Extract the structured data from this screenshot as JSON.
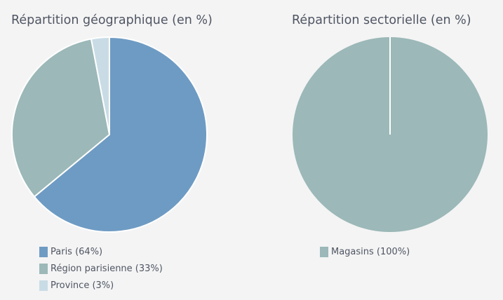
{
  "colors": {
    "background": "#f4f4f4",
    "paris": "#6e9bc3",
    "region_parisienne": "#9cb8b8",
    "province": "#c9dce6",
    "magasins": "#9cb8b8",
    "slice_border": "#ffffff"
  },
  "chart_data": [
    {
      "type": "pie",
      "title": "Répartition géographique (en %)",
      "legend_position": "bottom-left",
      "slices": [
        {
          "label": "Paris",
          "legend": "Paris (64%)",
          "value": 64,
          "color": "#6e9bc3"
        },
        {
          "label": "Région parisienne",
          "legend": "Région parisienne (33%)",
          "value": 33,
          "color": "#9cb8b8"
        },
        {
          "label": "Province",
          "legend": "Province (3%)",
          "value": 3,
          "color": "#c9dce6"
        }
      ]
    },
    {
      "type": "pie",
      "title": "Répartition sectorielle (en %)",
      "legend_position": "bottom-left",
      "slices": [
        {
          "label": "Magasins",
          "legend": "Magasins (100%)",
          "value": 100,
          "color": "#9cb8b8"
        }
      ]
    }
  ]
}
